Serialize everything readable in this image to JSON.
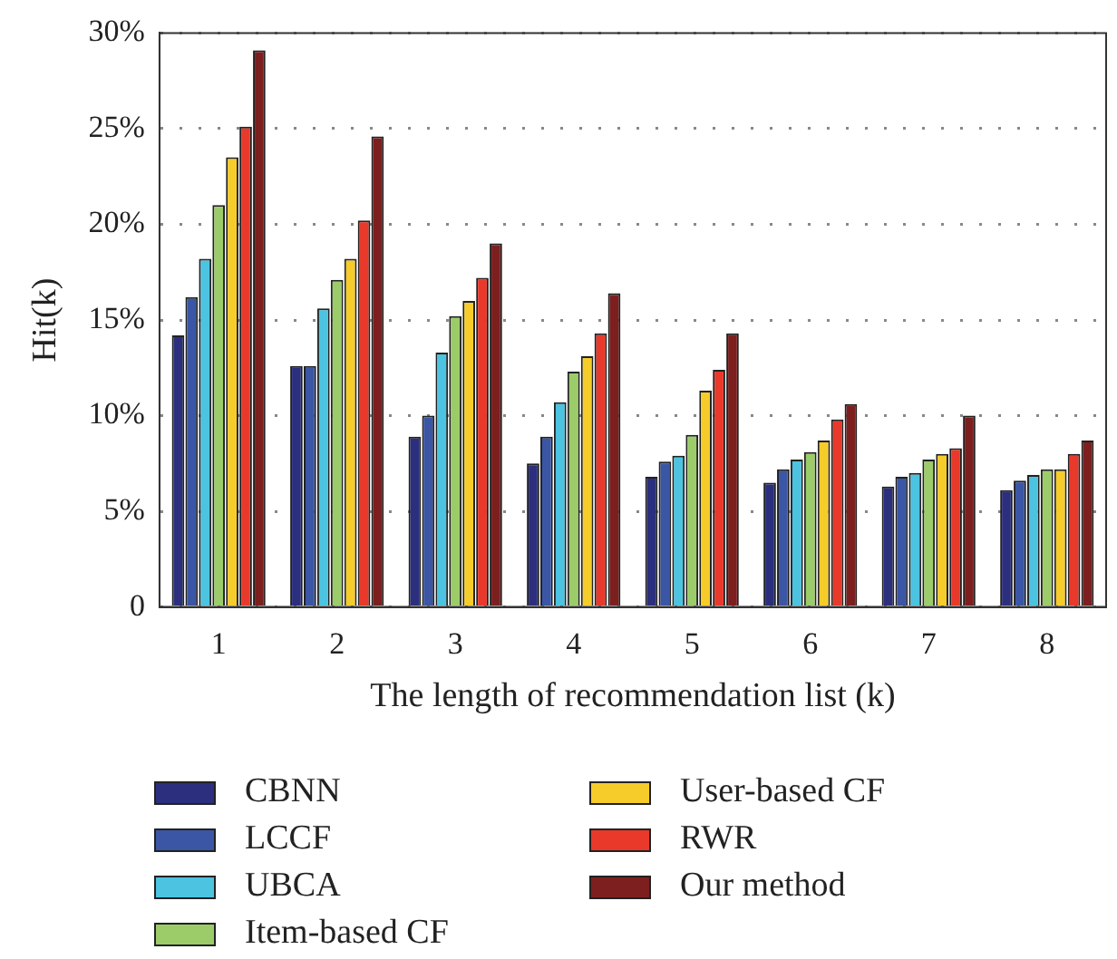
{
  "chart_data": {
    "type": "bar",
    "xlabel": "The length of recommendation list (k)",
    "ylabel": "Hit(k)",
    "categories": [
      "1",
      "2",
      "3",
      "4",
      "5",
      "6",
      "7",
      "8"
    ],
    "series": [
      {
        "name": "CBNN",
        "color": "#2b2f7e",
        "values": [
          14.2,
          12.6,
          8.9,
          7.5,
          6.8,
          6.5,
          6.3,
          6.1
        ]
      },
      {
        "name": "LCCF",
        "color": "#3a56a5",
        "values": [
          16.2,
          12.6,
          10.0,
          8.9,
          7.6,
          7.2,
          6.8,
          6.6
        ]
      },
      {
        "name": "UBCA",
        "color": "#4cc3e0",
        "values": [
          18.2,
          15.6,
          13.3,
          10.7,
          7.9,
          7.7,
          7.0,
          6.9
        ]
      },
      {
        "name": "Item-based CF",
        "color": "#9ccc6a",
        "values": [
          21.0,
          17.1,
          15.2,
          12.3,
          9.0,
          8.1,
          7.7,
          7.2
        ]
      },
      {
        "name": "User-based CF",
        "color": "#f5cc2a",
        "values": [
          23.5,
          18.2,
          16.0,
          13.1,
          11.3,
          8.7,
          8.0,
          7.2
        ]
      },
      {
        "name": "RWR",
        "color": "#e8392b",
        "values": [
          25.1,
          20.2,
          17.2,
          14.3,
          12.4,
          9.8,
          8.3,
          8.0
        ]
      },
      {
        "name": "Our method",
        "color": "#7d1f1f",
        "values": [
          29.1,
          24.6,
          19.0,
          16.4,
          14.3,
          10.6,
          10.0,
          8.7
        ]
      }
    ],
    "ylim": [
      0,
      30
    ],
    "yticks": [
      0,
      {
        "value": 5,
        "label": "5%"
      },
      {
        "value": 10,
        "label": "10%"
      },
      {
        "value": 15,
        "label": "15%"
      },
      {
        "value": 20,
        "label": "20%"
      },
      {
        "value": 25,
        "label": "25%"
      },
      {
        "value": 30,
        "label": "30%"
      }
    ],
    "grid": "y",
    "legend": "bottom"
  }
}
